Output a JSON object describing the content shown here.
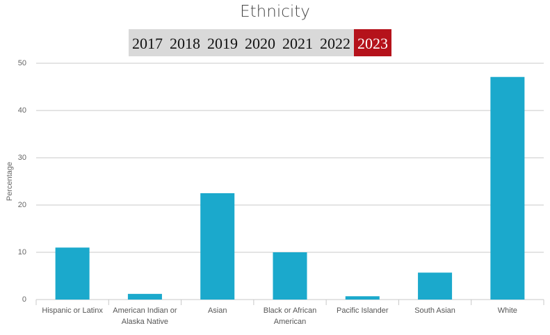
{
  "chart_data": {
    "type": "bar",
    "title": "Ethnicity",
    "years": [
      "2017",
      "2018",
      "2019",
      "2020",
      "2021",
      "2022",
      "2023"
    ],
    "selected_year": "2023",
    "ylabel": "Percentage",
    "categories": [
      "Hispanic or Latinx",
      "American Indian or Alaska Native",
      "Asian",
      "Black or African American",
      "Pacific Islander",
      "South Asian",
      "White"
    ],
    "values": [
      11.0,
      1.2,
      22.5,
      10.0,
      0.7,
      5.7,
      47.1
    ],
    "color": "#1ba9cc",
    "ylim": [
      0,
      50
    ],
    "yticks": [
      0,
      10,
      20,
      30,
      40,
      50
    ],
    "grid": true
  }
}
